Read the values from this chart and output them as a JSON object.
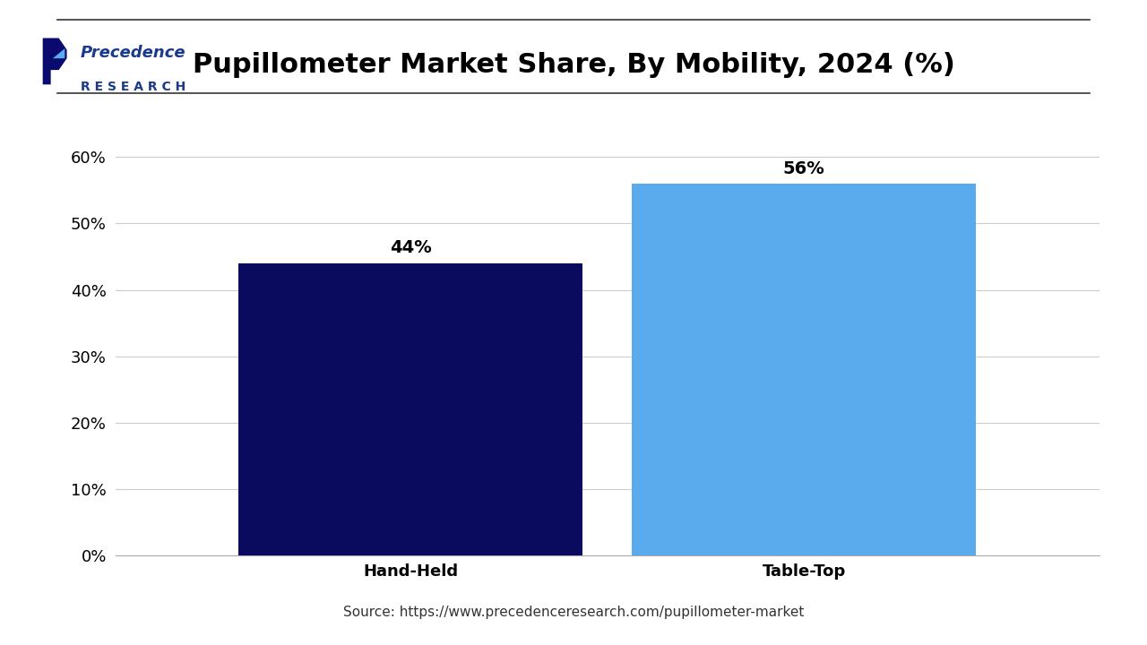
{
  "title": "Pupillometer Market Share, By Mobility, 2024 (%)",
  "categories": [
    "Hand-Held",
    "Table-Top"
  ],
  "values": [
    44,
    56
  ],
  "bar_colors": [
    "#0a0a5e",
    "#5aabee"
  ],
  "value_labels": [
    "44%",
    "56%"
  ],
  "ylim": [
    0,
    70
  ],
  "yticks": [
    0,
    10,
    20,
    30,
    40,
    50,
    60
  ],
  "ytick_labels": [
    "0%",
    "10%",
    "20%",
    "30%",
    "40%",
    "50%",
    "60%"
  ],
  "source_text": "Source: https://www.precedenceresearch.com/pupillometer-market",
  "background_color": "#ffffff",
  "title_fontsize": 22,
  "label_fontsize": 13,
  "value_fontsize": 14,
  "source_fontsize": 11,
  "bar_width": 0.35,
  "logo_text_line1": "Precedence",
  "logo_text_line2": "R E S E A R C H",
  "logo_color": "#1a3a8c"
}
